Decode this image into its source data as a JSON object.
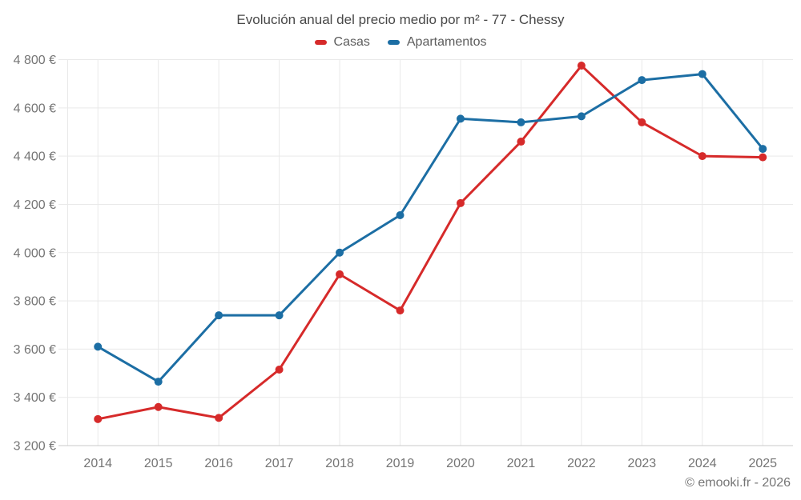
{
  "chart_data": {
    "type": "line",
    "title": "Evolución anual del precio medio por m² - 77 - Chessy",
    "categories": [
      "2014",
      "2015",
      "2016",
      "2017",
      "2018",
      "2019",
      "2020",
      "2021",
      "2022",
      "2023",
      "2024",
      "2025"
    ],
    "series": [
      {
        "name": "Casas",
        "color": "#d62a2a",
        "values": [
          3310,
          3360,
          3315,
          3515,
          3910,
          3760,
          4205,
          4460,
          4775,
          4540,
          4400,
          4395
        ]
      },
      {
        "name": "Apartamentos",
        "color": "#1c6ea4",
        "values": [
          3610,
          3465,
          3740,
          3740,
          4000,
          4155,
          4555,
          4540,
          4565,
          4715,
          4740,
          4430
        ]
      }
    ],
    "ylim": [
      3200,
      4800
    ],
    "ytick_values": [
      3200,
      3400,
      3600,
      3800,
      4000,
      4200,
      4400,
      4600,
      4800
    ],
    "ytick_labels": [
      "3 200 €",
      "3 400 €",
      "3 600 €",
      "3 800 €",
      "4 000 €",
      "4 200 €",
      "4 400 €",
      "4 600 €",
      "4 800 €"
    ],
    "y_unit": "€",
    "grid": true,
    "legend_position": "top",
    "attribution": "© emooki.fr - 2026"
  },
  "colors": {
    "background": "#ffffff",
    "grid": "#e9e9e9",
    "axis": "#c9c9c9",
    "tick_text": "#757575",
    "title_text": "#484848",
    "legend_text": "#5c5c5c"
  }
}
